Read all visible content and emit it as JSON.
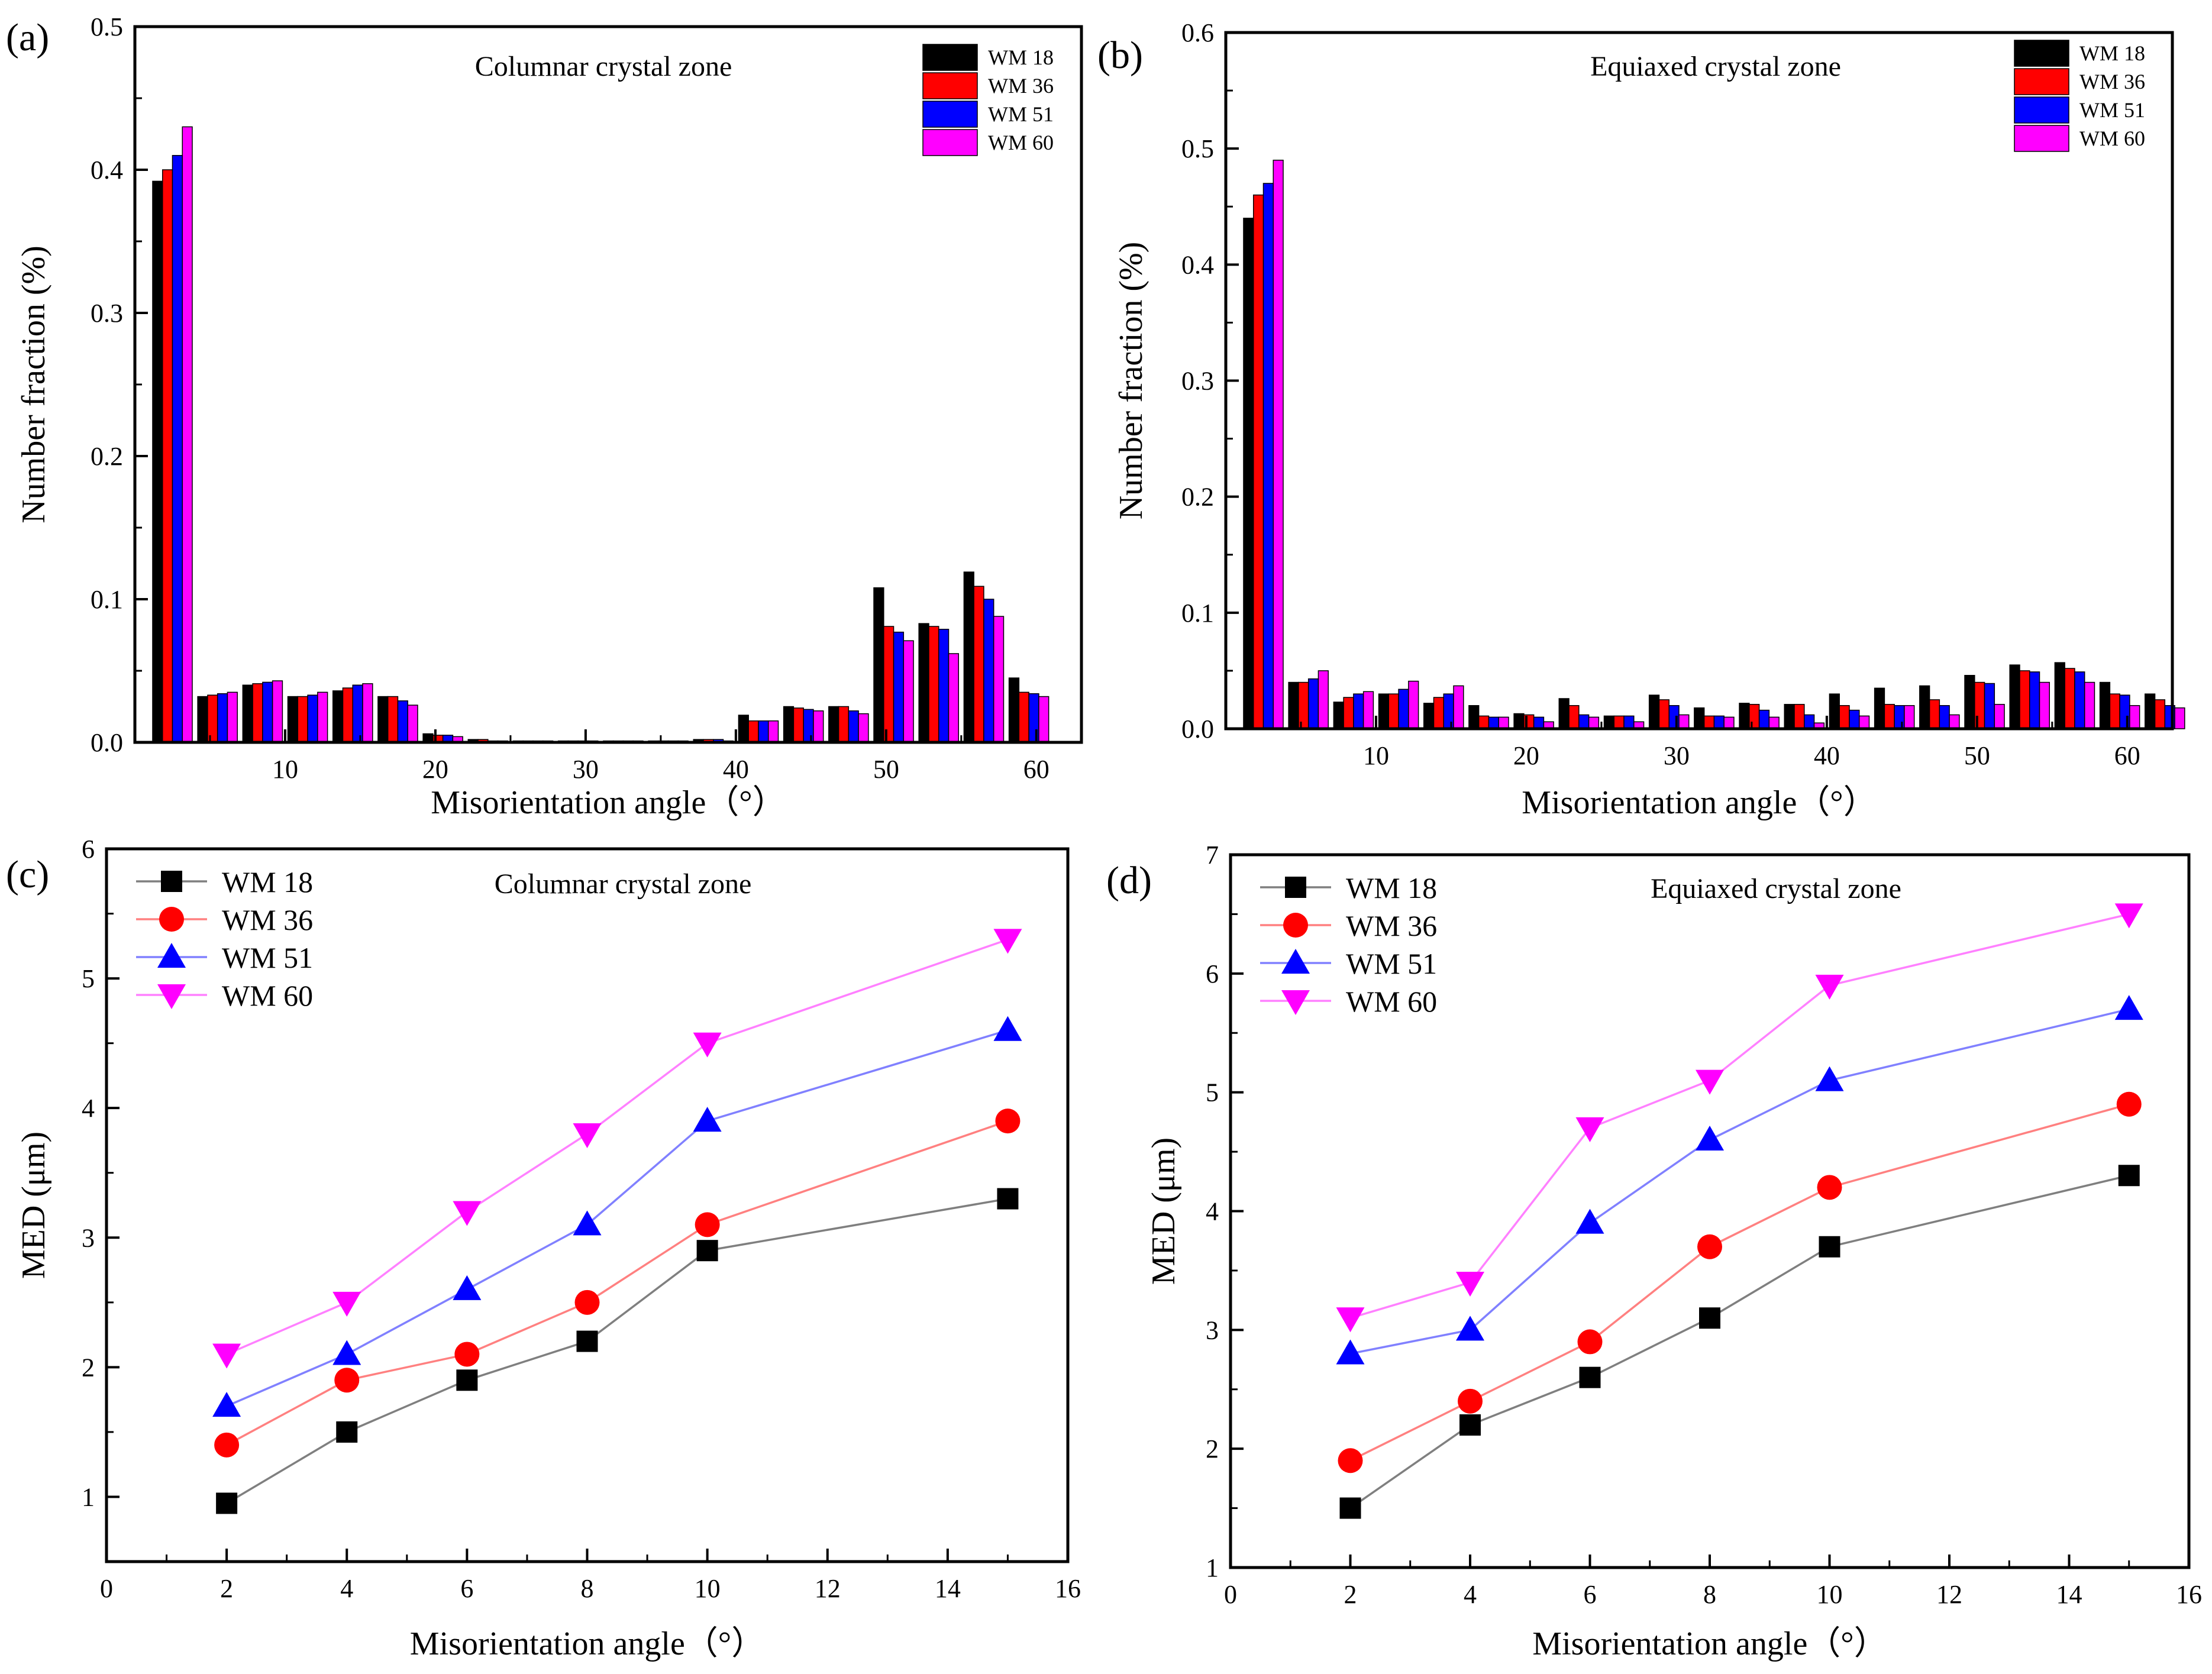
{
  "colors": {
    "WM 18": "#000000",
    "WM 36": "#ff0000",
    "WM 51": "#0000ff",
    "WM 60": "#ff00ff",
    "axis": "#000000"
  },
  "chart_data": [
    {
      "panel_label": "(a)",
      "type": "bar",
      "title": "Columnar crystal zone",
      "xlabel": "Misorientation angle（°）",
      "ylabel": "Number fraction (%)",
      "xlim": [
        0,
        63
      ],
      "ylim": [
        0,
        0.5
      ],
      "xticks": [
        "10",
        "20",
        "30",
        "40",
        "50",
        "60"
      ],
      "yticks": [
        "0.0",
        "0.1",
        "0.2",
        "0.3",
        "0.4",
        "0.5"
      ],
      "legend": [
        "WM 18",
        "WM 36",
        "WM 51",
        "WM 60"
      ],
      "bin_centers": [
        2.5,
        5.5,
        8.5,
        11.5,
        14.5,
        17.5,
        20.5,
        23.5,
        26.5,
        29.5,
        32.5,
        35.5,
        38.5,
        41.5,
        44.5,
        47.5,
        50.5,
        53.5,
        56.5,
        59.5,
        62.5
      ],
      "series": [
        {
          "name": "WM 18",
          "values": [
            0.392,
            0.032,
            0.04,
            0.032,
            0.036,
            0.032,
            0.006,
            0.002,
            0.001,
            0.001,
            0.001,
            0.001,
            0.002,
            0.019,
            0.025,
            0.025,
            0.108,
            0.083,
            0.119,
            0.045,
            0.0
          ]
        },
        {
          "name": "WM 36",
          "values": [
            0.4,
            0.033,
            0.041,
            0.032,
            0.038,
            0.032,
            0.005,
            0.002,
            0.001,
            0.001,
            0.001,
            0.001,
            0.002,
            0.015,
            0.024,
            0.025,
            0.081,
            0.081,
            0.109,
            0.035,
            0.0
          ]
        },
        {
          "name": "WM 51",
          "values": [
            0.41,
            0.034,
            0.042,
            0.033,
            0.04,
            0.029,
            0.005,
            0.001,
            0.001,
            0.001,
            0.001,
            0.001,
            0.002,
            0.015,
            0.023,
            0.022,
            0.077,
            0.079,
            0.1,
            0.034,
            0.0
          ]
        },
        {
          "name": "WM 60",
          "values": [
            0.43,
            0.035,
            0.043,
            0.035,
            0.041,
            0.026,
            0.004,
            0.001,
            0.001,
            0.001,
            0.001,
            0.001,
            0.001,
            0.015,
            0.022,
            0.02,
            0.071,
            0.062,
            0.088,
            0.032,
            0.0
          ]
        }
      ]
    },
    {
      "panel_label": "(b)",
      "type": "bar",
      "title": "Equiaxed crystal zone",
      "xlabel": "Misorientation angle（°）",
      "ylabel": "Number fraction (%)",
      "xlim": [
        0,
        63
      ],
      "ylim": [
        0,
        0.6
      ],
      "xticks": [
        "10",
        "20",
        "30",
        "40",
        "50",
        "60"
      ],
      "yticks": [
        "0.0",
        "0.1",
        "0.2",
        "0.3",
        "0.4",
        "0.5",
        "0.6"
      ],
      "legend": [
        "WM 18",
        "WM 36",
        "WM 51",
        "WM 60"
      ],
      "bin_centers": [
        2.5,
        5.5,
        8.5,
        11.5,
        14.5,
        17.5,
        20.5,
        23.5,
        26.5,
        29.5,
        32.5,
        35.5,
        38.5,
        41.5,
        44.5,
        47.5,
        50.5,
        53.5,
        56.5,
        59.5,
        62.5
      ],
      "series": [
        {
          "name": "WM 18",
          "values": [
            0.44,
            0.04,
            0.023,
            0.03,
            0.022,
            0.02,
            0.013,
            0.026,
            0.011,
            0.029,
            0.018,
            0.022,
            0.021,
            0.03,
            0.035,
            0.037,
            0.046,
            0.055,
            0.057,
            0.04,
            0.03
          ]
        },
        {
          "name": "WM 36",
          "values": [
            0.46,
            0.04,
            0.027,
            0.03,
            0.027,
            0.011,
            0.012,
            0.02,
            0.011,
            0.025,
            0.011,
            0.021,
            0.021,
            0.02,
            0.021,
            0.025,
            0.04,
            0.05,
            0.052,
            0.03,
            0.025
          ]
        },
        {
          "name": "WM 51",
          "values": [
            0.47,
            0.043,
            0.03,
            0.034,
            0.03,
            0.01,
            0.01,
            0.012,
            0.011,
            0.02,
            0.011,
            0.016,
            0.012,
            0.016,
            0.02,
            0.02,
            0.039,
            0.049,
            0.049,
            0.029,
            0.02
          ]
        },
        {
          "name": "WM 60",
          "values": [
            0.49,
            0.05,
            0.032,
            0.041,
            0.037,
            0.01,
            0.006,
            0.01,
            0.006,
            0.012,
            0.01,
            0.01,
            0.005,
            0.011,
            0.02,
            0.012,
            0.021,
            0.04,
            0.04,
            0.02,
            0.018
          ]
        }
      ]
    },
    {
      "panel_label": "(c)",
      "type": "line",
      "title": "Columnar crystal zone",
      "xlabel": "Misorientation angle（°）",
      "ylabel": "MED (μm)",
      "xlim": [
        0,
        16
      ],
      "ylim": [
        0.5,
        6
      ],
      "xticks": [
        "0",
        "2",
        "4",
        "6",
        "8",
        "10",
        "12",
        "14",
        "16"
      ],
      "yticks": [
        "1",
        "2",
        "3",
        "4",
        "5",
        "6"
      ],
      "x": [
        2,
        4,
        6,
        8,
        10,
        15
      ],
      "series": [
        {
          "name": "WM 18",
          "marker": "square",
          "values": [
            0.95,
            1.5,
            1.9,
            2.2,
            2.9,
            3.3
          ]
        },
        {
          "name": "WM 36",
          "marker": "circle",
          "values": [
            1.4,
            1.9,
            2.1,
            2.5,
            3.1,
            3.9
          ]
        },
        {
          "name": "WM 51",
          "marker": "triangle-up",
          "values": [
            1.7,
            2.1,
            2.6,
            3.1,
            3.9,
            4.6
          ]
        },
        {
          "name": "WM 60",
          "marker": "triangle-down",
          "values": [
            2.1,
            2.5,
            3.2,
            3.8,
            4.5,
            5.3
          ]
        }
      ]
    },
    {
      "panel_label": "(d)",
      "type": "line",
      "title": "Equiaxed crystal zone",
      "xlabel": "Misorientation angle（°）",
      "ylabel": "MED (μm)",
      "xlim": [
        0,
        16
      ],
      "ylim": [
        1,
        7
      ],
      "xticks": [
        "0",
        "2",
        "4",
        "6",
        "8",
        "10",
        "12",
        "14",
        "16"
      ],
      "yticks": [
        "1",
        "2",
        "3",
        "4",
        "5",
        "6",
        "7"
      ],
      "x": [
        2,
        4,
        6,
        8,
        10,
        15
      ],
      "series": [
        {
          "name": "WM 18",
          "marker": "square",
          "values": [
            1.5,
            2.2,
            2.6,
            3.1,
            3.7,
            4.3
          ]
        },
        {
          "name": "WM 36",
          "marker": "circle",
          "values": [
            1.9,
            2.4,
            2.9,
            3.7,
            4.2,
            4.9
          ]
        },
        {
          "name": "WM 51",
          "marker": "triangle-up",
          "values": [
            2.8,
            3.0,
            3.9,
            4.6,
            5.1,
            5.7
          ]
        },
        {
          "name": "WM 60",
          "marker": "triangle-down",
          "values": [
            3.1,
            3.4,
            4.7,
            5.1,
            5.9,
            6.5
          ]
        }
      ]
    }
  ]
}
